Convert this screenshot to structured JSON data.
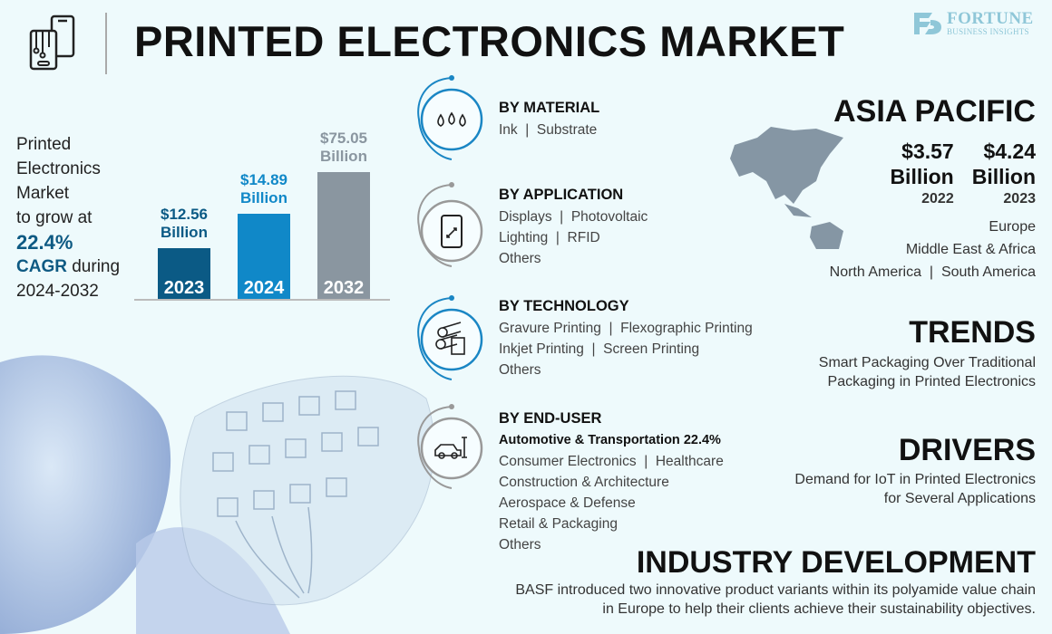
{
  "header": {
    "title": "PRINTED ELECTRONICS MARKET",
    "logo_main": "FORTUNE",
    "logo_sub": "BUSINESS INSIGHTS"
  },
  "intro": {
    "line1": "Printed",
    "line2": "Electronics",
    "line3": "Market",
    "line4": "to grow at",
    "cagr_value": "22.4%",
    "cagr_label": "CAGR",
    "during": " during",
    "period": "2024-2032"
  },
  "chart_data": {
    "type": "bar",
    "categories": [
      "2023",
      "2024",
      "2032"
    ],
    "values": [
      12.56,
      14.89,
      75.05
    ],
    "value_labels": [
      "$12.56",
      "$14.89",
      "$75.05"
    ],
    "unit": "Billion",
    "colors": [
      "#0b5a85",
      "#1088c8",
      "#8a96a0"
    ]
  },
  "segments": [
    {
      "title": "BY MATERIAL",
      "lines": [
        "Ink  |  Substrate"
      ]
    },
    {
      "title": "BY APPLICATION",
      "lines": [
        "Displays  |  Photovoltaic",
        "Lighting  |  RFID",
        "Others"
      ]
    },
    {
      "title": "BY TECHNOLOGY",
      "lines": [
        "Gravure Printing  |  Flexographic Printing",
        "Inkjet Printing  |  Screen Printing",
        "Others"
      ]
    },
    {
      "title": "BY END-USER",
      "highlight": "Automotive & Transportation 22.4%",
      "lines": [
        "Consumer Electronics  |  Healthcare",
        "Construction & Architecture",
        "Aerospace & Defense",
        "Retail & Packaging",
        "Others"
      ]
    }
  ],
  "region": {
    "title": "ASIA PACIFIC",
    "v1": "$3.57",
    "v2": "$4.24",
    "unit": "Billion",
    "y1": "2022",
    "y2": "2023",
    "others": [
      "Europe",
      "Middle East & Africa",
      "North America  |  South America"
    ]
  },
  "trends": {
    "title": "TRENDS",
    "lines": [
      "Smart Packaging Over Traditional",
      "Packaging in Printed Electronics"
    ]
  },
  "drivers": {
    "title": "DRIVERS",
    "lines": [
      "Demand for IoT in Printed Electronics",
      "for Several Applications"
    ]
  },
  "industry": {
    "title": "INDUSTRY DEVELOPMENT",
    "lines": [
      "BASF introduced two innovative product variants within its polyamide value chain",
      "in Europe to help their clients achieve their sustainability objectives."
    ]
  },
  "icons": [
    "phone-circuit-icon",
    "ink-drops-icon",
    "phone-resize-icon",
    "printing-rollers-icon",
    "car-wrench-icon",
    "asia-pacific-map"
  ]
}
